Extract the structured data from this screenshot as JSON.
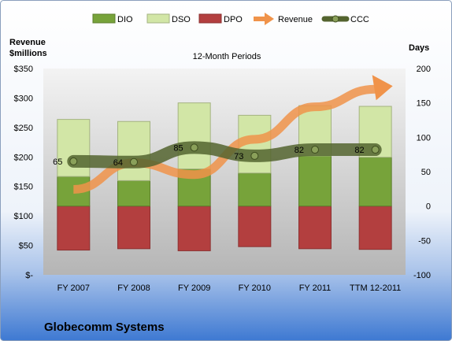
{
  "chart_data": {
    "type": "bar",
    "title": "12-Month Periods",
    "company": "Globecomm Systems",
    "left_axis_label": [
      "Revenue",
      "$millions"
    ],
    "right_axis_label": "Days",
    "categories": [
      "FY 2007",
      "FY 2008",
      "FY 2009",
      "FY 2010",
      "FY 2011",
      "TTM 12-2011"
    ],
    "left_ticks": [
      "$-",
      "$50",
      "$100",
      "$150",
      "$200",
      "$250",
      "$300",
      "$350"
    ],
    "left_ylim": [
      0,
      350
    ],
    "right_ticks": [
      "-100",
      "-50",
      "0",
      "50",
      "100",
      "150",
      "200"
    ],
    "right_ylim": [
      -100,
      200
    ],
    "grid": false,
    "legend_position": "top",
    "stack_series": [
      {
        "name": "DPO",
        "color": "#b33f3f",
        "values": [
          -64,
          -62,
          -65,
          -59,
          -62,
          -63
        ]
      },
      {
        "name": "DIO",
        "color": "#77a33a",
        "values": [
          43,
          37,
          54,
          48,
          73,
          71
        ]
      },
      {
        "name": "DSO",
        "color": "#d2e6a6",
        "values": [
          83,
          86,
          96,
          84,
          73,
          74
        ]
      }
    ],
    "revenue": {
      "name": "Revenue",
      "color": "#f0934a",
      "values": [
        145,
        190,
        170,
        230,
        285,
        315
      ]
    },
    "ccc": {
      "name": "CCC",
      "color": "#54642f",
      "values": [
        65,
        64,
        85,
        73,
        82,
        82
      ]
    },
    "ccc_labels": [
      "65",
      "64",
      "85",
      "73",
      "82",
      "82"
    ]
  }
}
